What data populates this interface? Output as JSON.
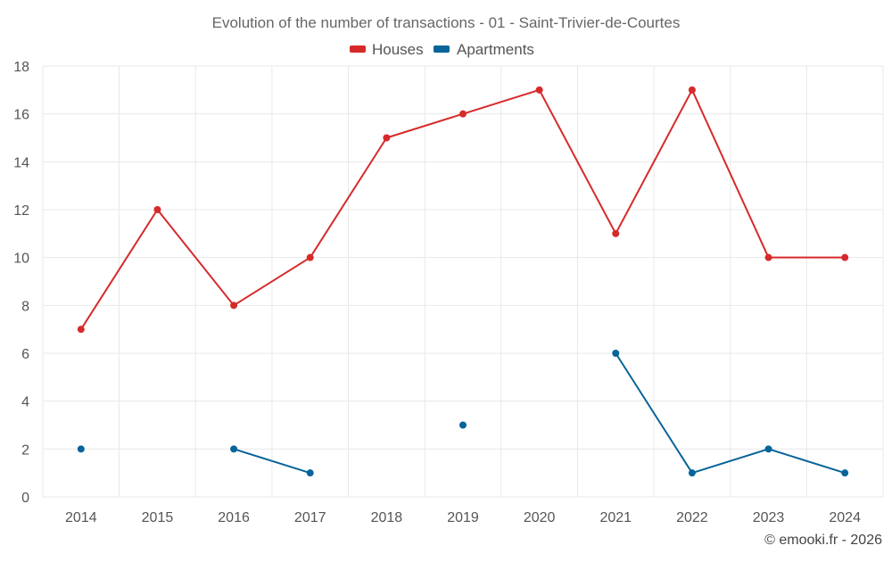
{
  "chart_data": {
    "type": "line",
    "title": "Evolution of the number of transactions - 01 - Saint-Trivier-de-Courtes",
    "xlabel": "",
    "ylabel": "",
    "categories": [
      "2014",
      "2015",
      "2016",
      "2017",
      "2018",
      "2019",
      "2020",
      "2021",
      "2022",
      "2023",
      "2024"
    ],
    "ylim": [
      0,
      18
    ],
    "yticks": [
      0,
      2,
      4,
      6,
      8,
      10,
      12,
      14,
      16,
      18
    ],
    "grid": true,
    "legend_position": "top-center",
    "series": [
      {
        "name": "Houses",
        "color": "#d62a2a",
        "values": [
          7,
          12,
          8,
          10,
          15,
          16,
          17,
          11,
          17,
          10,
          10
        ]
      },
      {
        "name": "Apartments",
        "color": "#07649a",
        "values": [
          2,
          null,
          2,
          1,
          null,
          3,
          null,
          6,
          1,
          2,
          1
        ]
      }
    ]
  },
  "credit": "© emooki.fr - 2026"
}
